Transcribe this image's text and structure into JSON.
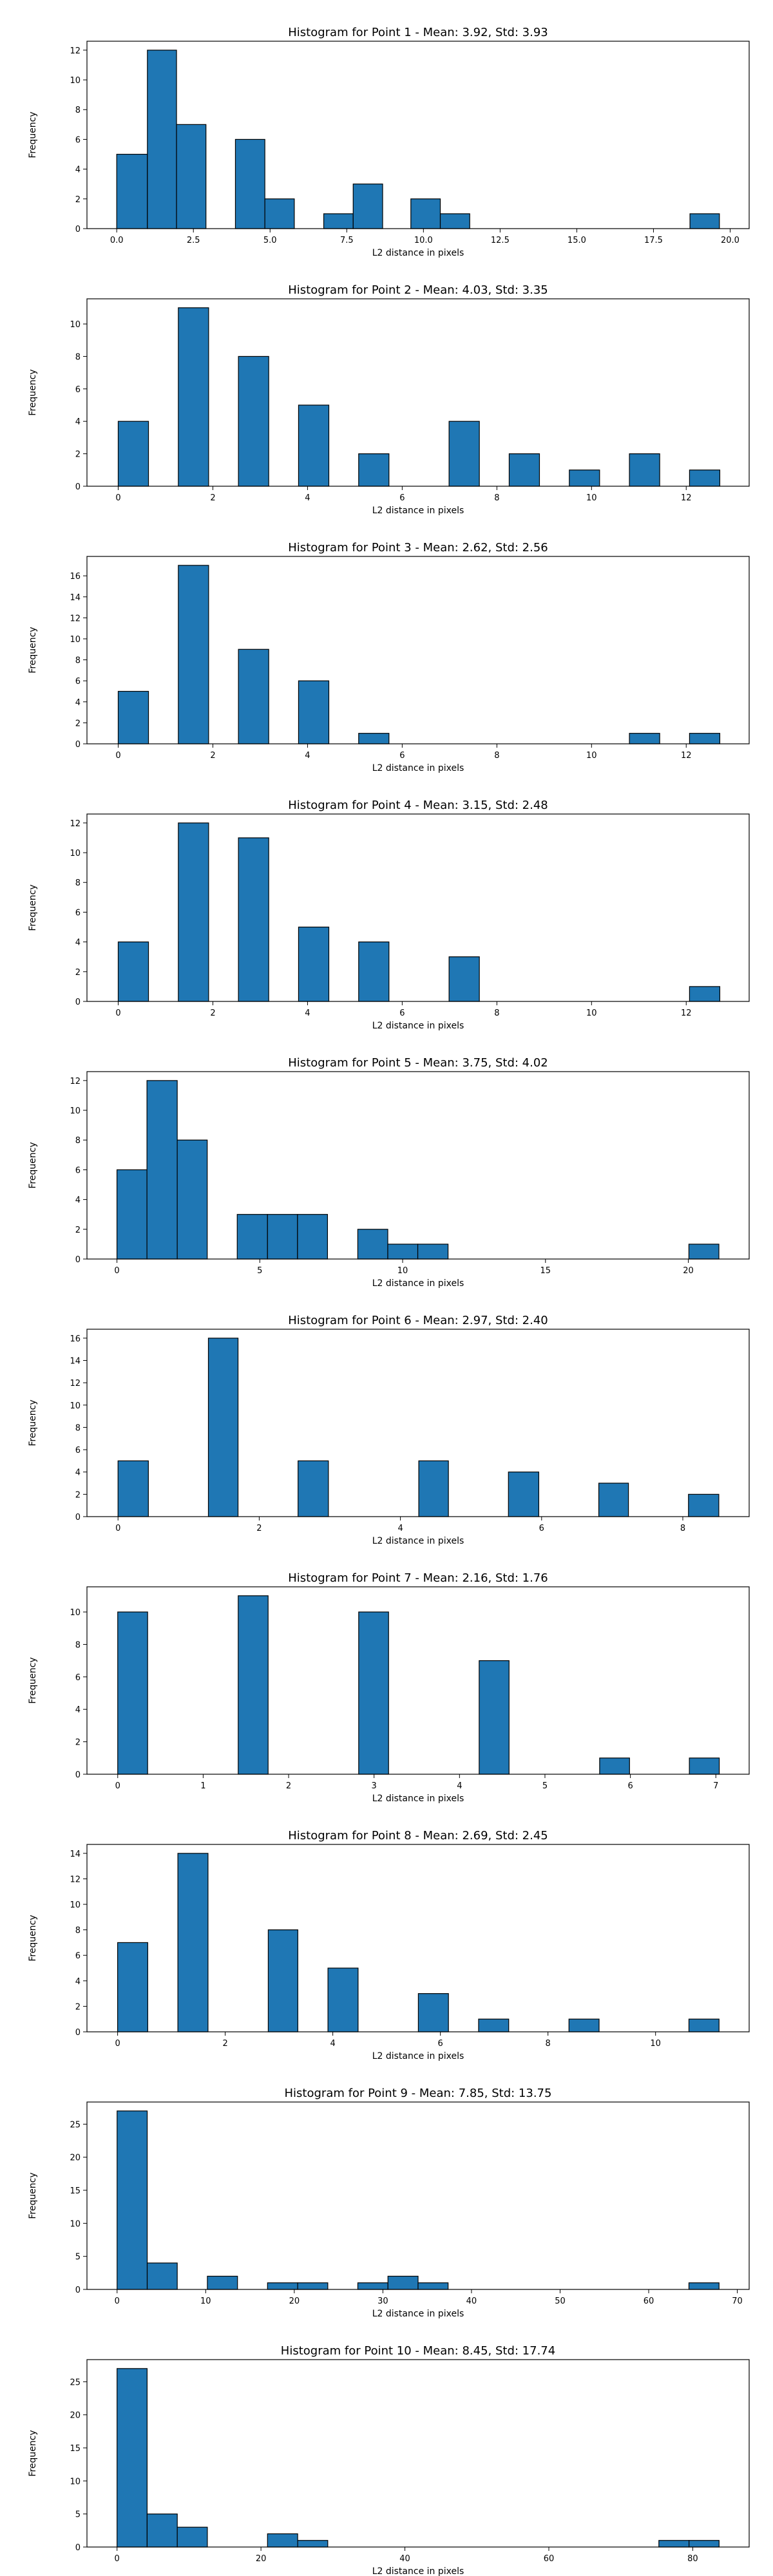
{
  "chart_data": [
    {
      "type": "bar",
      "title": "Histogram for Point 1 - Mean: 3.92, Std: 3.93",
      "xlabel": "L2 distance in pixels",
      "ylabel": "Frequency",
      "xlim": [
        -0.97,
        20.62
      ],
      "ylim": [
        0,
        12.6
      ],
      "xticks": [
        0.0,
        2.5,
        5.0,
        7.5,
        10.0,
        12.5,
        15.0,
        17.5,
        20.0
      ],
      "xtick_labels": [
        "0.0",
        "2.5",
        "5.0",
        "7.5",
        "10.0",
        "12.5",
        "15.0",
        "17.5",
        "20.0"
      ],
      "yticks": [
        0,
        2,
        4,
        6,
        8,
        10,
        12
      ],
      "bars": [
        {
          "x0": 0.0,
          "x1": 1.0,
          "count": 5
        },
        {
          "x0": 1.0,
          "x1": 1.95,
          "count": 12
        },
        {
          "x0": 1.95,
          "x1": 2.91,
          "count": 7
        },
        {
          "x0": 3.87,
          "x1": 4.83,
          "count": 6
        },
        {
          "x0": 4.83,
          "x1": 5.79,
          "count": 2
        },
        {
          "x0": 6.75,
          "x1": 7.71,
          "count": 1
        },
        {
          "x0": 7.71,
          "x1": 8.67,
          "count": 3
        },
        {
          "x0": 9.59,
          "x1": 10.55,
          "count": 2
        },
        {
          "x0": 10.55,
          "x1": 11.51,
          "count": 1
        },
        {
          "x0": 18.69,
          "x1": 19.65,
          "count": 1
        }
      ],
      "bar_color": "#1f77b4",
      "grid": false,
      "legend": "none"
    },
    {
      "type": "bar",
      "title": "Histogram for Point 2 - Mean: 4.03, Std: 3.35",
      "xlabel": "L2 distance in pixels",
      "ylabel": "Frequency",
      "xlim": [
        -0.66,
        13.33
      ],
      "ylim": [
        0,
        11.55
      ],
      "xticks": [
        0,
        2,
        4,
        6,
        8,
        10,
        12
      ],
      "xtick_labels": [
        "0",
        "2",
        "4",
        "6",
        "8",
        "10",
        "12"
      ],
      "yticks": [
        0,
        2,
        4,
        6,
        8,
        10
      ],
      "bars": [
        {
          "x0": 0.0,
          "x1": 0.64,
          "count": 4
        },
        {
          "x0": 1.27,
          "x1": 1.91,
          "count": 11
        },
        {
          "x0": 2.54,
          "x1": 3.18,
          "count": 8
        },
        {
          "x0": 3.81,
          "x1": 4.45,
          "count": 5
        },
        {
          "x0": 5.08,
          "x1": 5.72,
          "count": 2
        },
        {
          "x0": 6.99,
          "x1": 7.63,
          "count": 4
        },
        {
          "x0": 8.26,
          "x1": 8.9,
          "count": 2
        },
        {
          "x0": 9.53,
          "x1": 10.17,
          "count": 1
        },
        {
          "x0": 10.8,
          "x1": 11.44,
          "count": 2
        },
        {
          "x0": 12.07,
          "x1": 12.71,
          "count": 1
        }
      ],
      "bar_color": "#1f77b4",
      "grid": false,
      "legend": "none"
    },
    {
      "type": "bar",
      "title": "Histogram for Point 3 - Mean: 2.62, Std: 2.56",
      "xlabel": "L2 distance in pixels",
      "ylabel": "Frequency",
      "xlim": [
        -0.66,
        13.33
      ],
      "ylim": [
        0,
        17.85
      ],
      "xticks": [
        0,
        2,
        4,
        6,
        8,
        10,
        12
      ],
      "xtick_labels": [
        "0",
        "2",
        "4",
        "6",
        "8",
        "10",
        "12"
      ],
      "yticks": [
        0,
        2,
        4,
        6,
        8,
        10,
        12,
        14,
        16
      ],
      "bars": [
        {
          "x0": 0.0,
          "x1": 0.64,
          "count": 5
        },
        {
          "x0": 1.27,
          "x1": 1.91,
          "count": 17
        },
        {
          "x0": 2.54,
          "x1": 3.18,
          "count": 9
        },
        {
          "x0": 3.81,
          "x1": 4.45,
          "count": 6
        },
        {
          "x0": 5.08,
          "x1": 5.72,
          "count": 1
        },
        {
          "x0": 10.8,
          "x1": 11.44,
          "count": 1
        },
        {
          "x0": 12.07,
          "x1": 12.71,
          "count": 1
        }
      ],
      "bar_color": "#1f77b4",
      "grid": false,
      "legend": "none"
    },
    {
      "type": "bar",
      "title": "Histogram for Point 4 - Mean: 3.15, Std: 2.48",
      "xlabel": "L2 distance in pixels",
      "ylabel": "Frequency",
      "xlim": [
        -0.66,
        13.33
      ],
      "ylim": [
        0,
        12.6
      ],
      "xticks": [
        0,
        2,
        4,
        6,
        8,
        10,
        12
      ],
      "xtick_labels": [
        "0",
        "2",
        "4",
        "6",
        "8",
        "10",
        "12"
      ],
      "yticks": [
        0,
        2,
        4,
        6,
        8,
        10,
        12
      ],
      "bars": [
        {
          "x0": 0.0,
          "x1": 0.64,
          "count": 4
        },
        {
          "x0": 1.27,
          "x1": 1.91,
          "count": 12
        },
        {
          "x0": 2.54,
          "x1": 3.18,
          "count": 11
        },
        {
          "x0": 3.81,
          "x1": 4.45,
          "count": 5
        },
        {
          "x0": 5.08,
          "x1": 5.72,
          "count": 4
        },
        {
          "x0": 6.99,
          "x1": 7.63,
          "count": 3
        },
        {
          "x0": 12.07,
          "x1": 12.71,
          "count": 1
        }
      ],
      "bar_color": "#1f77b4",
      "grid": false,
      "legend": "none"
    },
    {
      "type": "bar",
      "title": "Histogram for Point 5 - Mean: 3.75, Std: 4.02",
      "xlabel": "L2 distance in pixels",
      "ylabel": "Frequency",
      "xlim": [
        -1.05,
        22.13
      ],
      "ylim": [
        0,
        12.6
      ],
      "xticks": [
        0,
        5,
        10,
        15,
        20
      ],
      "xtick_labels": [
        "0",
        "5",
        "10",
        "15",
        "20"
      ],
      "yticks": [
        0,
        2,
        4,
        6,
        8,
        10,
        12
      ],
      "bars": [
        {
          "x0": 0.0,
          "x1": 1.05,
          "count": 6
        },
        {
          "x0": 1.05,
          "x1": 2.11,
          "count": 12
        },
        {
          "x0": 2.11,
          "x1": 3.16,
          "count": 8
        },
        {
          "x0": 4.21,
          "x1": 5.27,
          "count": 3
        },
        {
          "x0": 5.27,
          "x1": 6.32,
          "count": 3
        },
        {
          "x0": 6.32,
          "x1": 7.37,
          "count": 3
        },
        {
          "x0": 8.43,
          "x1": 9.48,
          "count": 2
        },
        {
          "x0": 9.48,
          "x1": 10.53,
          "count": 1
        },
        {
          "x0": 10.53,
          "x1": 11.59,
          "count": 1
        },
        {
          "x0": 20.02,
          "x1": 21.07,
          "count": 1
        }
      ],
      "bar_color": "#1f77b4",
      "grid": false,
      "legend": "none"
    },
    {
      "type": "bar",
      "title": "Histogram for Point 6 - Mean: 2.97, Std: 2.40",
      "xlabel": "L2 distance in pixels",
      "ylabel": "Frequency",
      "xlim": [
        -0.44,
        8.94
      ],
      "ylim": [
        0,
        16.8
      ],
      "xticks": [
        0,
        2,
        4,
        6,
        8
      ],
      "xtick_labels": [
        "0",
        "2",
        "4",
        "6",
        "8"
      ],
      "yticks": [
        0,
        2,
        4,
        6,
        8,
        10,
        12,
        14,
        16
      ],
      "bars": [
        {
          "x0": 0.0,
          "x1": 0.43,
          "count": 5
        },
        {
          "x0": 1.28,
          "x1": 1.7,
          "count": 16
        },
        {
          "x0": 2.55,
          "x1": 2.98,
          "count": 5
        },
        {
          "x0": 4.26,
          "x1": 4.68,
          "count": 5
        },
        {
          "x0": 5.53,
          "x1": 5.96,
          "count": 4
        },
        {
          "x0": 6.81,
          "x1": 7.23,
          "count": 3
        },
        {
          "x0": 8.08,
          "x1": 8.51,
          "count": 2
        }
      ],
      "bar_color": "#1f77b4",
      "grid": false,
      "legend": "none"
    },
    {
      "type": "bar",
      "title": "Histogram for Point 7 - Mean: 2.16, Std: 1.76",
      "xlabel": "L2 distance in pixels",
      "ylabel": "Frequency",
      "xlim": [
        -0.36,
        7.39
      ],
      "ylim": [
        0,
        11.55
      ],
      "xticks": [
        0,
        1,
        2,
        3,
        4,
        5,
        6,
        7
      ],
      "xtick_labels": [
        "0",
        "1",
        "2",
        "3",
        "4",
        "5",
        "6",
        "7"
      ],
      "yticks": [
        0,
        2,
        4,
        6,
        8,
        10
      ],
      "bars": [
        {
          "x0": 0.0,
          "x1": 0.35,
          "count": 10
        },
        {
          "x0": 1.41,
          "x1": 1.76,
          "count": 11
        },
        {
          "x0": 2.82,
          "x1": 3.17,
          "count": 10
        },
        {
          "x0": 4.23,
          "x1": 4.58,
          "count": 7
        },
        {
          "x0": 5.64,
          "x1": 5.99,
          "count": 1
        },
        {
          "x0": 6.69,
          "x1": 7.04,
          "count": 1
        }
      ],
      "bar_color": "#1f77b4",
      "grid": false,
      "legend": "none"
    },
    {
      "type": "bar",
      "title": "Histogram for Point 8 - Mean: 2.69, Std: 2.45",
      "xlabel": "L2 distance in pixels",
      "ylabel": "Frequency",
      "xlim": [
        -0.57,
        11.74
      ],
      "ylim": [
        0,
        14.7
      ],
      "xticks": [
        0,
        2,
        4,
        6,
        8,
        10
      ],
      "xtick_labels": [
        "0",
        "2",
        "4",
        "6",
        "8",
        "10"
      ],
      "yticks": [
        0,
        2,
        4,
        6,
        8,
        10,
        12,
        14
      ],
      "bars": [
        {
          "x0": 0.0,
          "x1": 0.56,
          "count": 7
        },
        {
          "x0": 1.12,
          "x1": 1.68,
          "count": 14
        },
        {
          "x0": 2.8,
          "x1": 3.35,
          "count": 8
        },
        {
          "x0": 3.91,
          "x1": 4.47,
          "count": 5
        },
        {
          "x0": 5.59,
          "x1": 6.15,
          "count": 3
        },
        {
          "x0": 6.71,
          "x1": 7.27,
          "count": 1
        },
        {
          "x0": 8.39,
          "x1": 8.95,
          "count": 1
        },
        {
          "x0": 10.62,
          "x1": 11.18,
          "count": 1
        }
      ],
      "bar_color": "#1f77b4",
      "grid": false,
      "legend": "none"
    },
    {
      "type": "bar",
      "title": "Histogram for Point 9 - Mean: 7.85, Std: 13.75",
      "xlabel": "L2 distance in pixels",
      "ylabel": "Frequency",
      "xlim": [
        -3.4,
        71.34
      ],
      "ylim": [
        0,
        28.35
      ],
      "xticks": [
        0,
        10,
        20,
        30,
        40,
        50,
        60,
        70
      ],
      "xtick_labels": [
        "0",
        "10",
        "20",
        "30",
        "40",
        "50",
        "60",
        "70"
      ],
      "yticks": [
        0,
        5,
        10,
        15,
        20,
        25
      ],
      "bars": [
        {
          "x0": 0.0,
          "x1": 3.4,
          "count": 27
        },
        {
          "x0": 3.4,
          "x1": 6.79,
          "count": 4
        },
        {
          "x0": 10.19,
          "x1": 13.59,
          "count": 2
        },
        {
          "x0": 16.98,
          "x1": 20.38,
          "count": 1
        },
        {
          "x0": 20.38,
          "x1": 23.78,
          "count": 1
        },
        {
          "x0": 27.17,
          "x1": 30.57,
          "count": 1
        },
        {
          "x0": 30.57,
          "x1": 33.97,
          "count": 2
        },
        {
          "x0": 33.97,
          "x1": 37.36,
          "count": 1
        },
        {
          "x0": 64.54,
          "x1": 67.94,
          "count": 1
        }
      ],
      "bar_color": "#1f77b4",
      "grid": false,
      "legend": "none"
    },
    {
      "type": "bar",
      "title": "Histogram for Point 10 - Mean: 8.45, Std: 17.74",
      "xlabel": "L2 distance in pixels",
      "ylabel": "Frequency",
      "xlim": [
        -4.18,
        87.84
      ],
      "ylim": [
        0,
        28.35
      ],
      "xticks": [
        0,
        20,
        40,
        60,
        80
      ],
      "xtick_labels": [
        "0",
        "20",
        "40",
        "60",
        "80"
      ],
      "yticks": [
        0,
        5,
        10,
        15,
        20,
        25
      ],
      "bars": [
        {
          "x0": 0.0,
          "x1": 4.18,
          "count": 27
        },
        {
          "x0": 4.18,
          "x1": 8.37,
          "count": 5
        },
        {
          "x0": 8.37,
          "x1": 12.55,
          "count": 3
        },
        {
          "x0": 20.91,
          "x1": 25.1,
          "count": 2
        },
        {
          "x0": 25.1,
          "x1": 29.28,
          "count": 1
        },
        {
          "x0": 75.29,
          "x1": 79.48,
          "count": 1
        },
        {
          "x0": 79.48,
          "x1": 83.66,
          "count": 1
        }
      ],
      "bar_color": "#1f77b4",
      "grid": false,
      "legend": "none"
    }
  ]
}
